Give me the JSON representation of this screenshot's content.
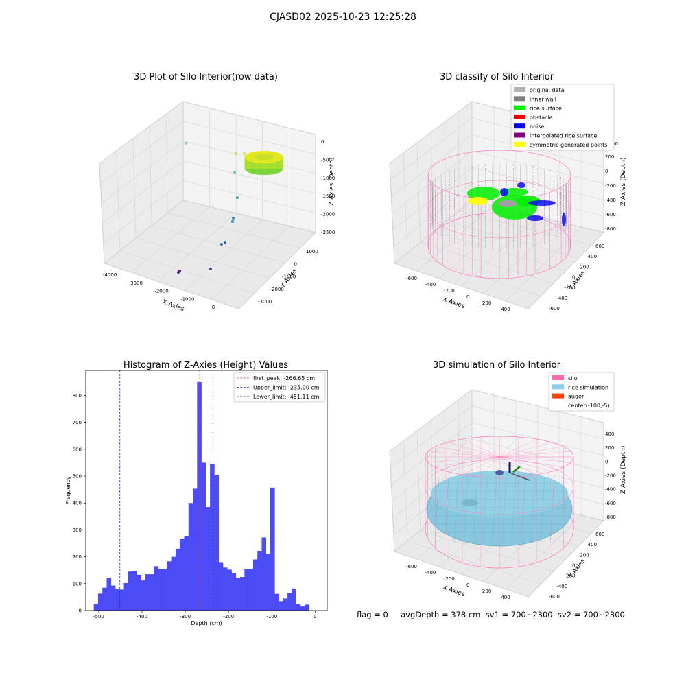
{
  "figure": {
    "title": "CJASD02 2025-10-23 12:25:28",
    "footer": "flag = 0     avgDepth = 378 cm  sv1 = 700~2300  sv2 = 700~2300"
  },
  "colors": {
    "hist_bar": "#4b4bf7",
    "first_peak": "#e8393a",
    "limit": "#2222cc",
    "silo_wire": "#ff77bb",
    "rice_sim": "#87c8de",
    "rice_surface": "#00ee00",
    "noise": "#0000ee",
    "inner_wall": "#808080",
    "symmetric": "#ffff00",
    "auger": "#ff4500"
  },
  "panel1": {
    "title": "3D Plot of Silo Interior(row data)",
    "xlabel": "X Axies",
    "ylabel": "Y Axies",
    "zlabel": "Z Axies (Depth)",
    "xticks": [
      "-4000",
      "-3000",
      "-2000",
      "-1000",
      "0"
    ],
    "yticks": [
      "1000",
      "0",
      "-1000",
      "-2000",
      "-3000"
    ],
    "zticks": [
      "0",
      "-500",
      "-1000",
      "-1500",
      "-2000",
      "-2500"
    ]
  },
  "panel2": {
    "title": "3D classify of Silo Interior",
    "xlabel": "X Axies",
    "ylabel": "Y Axies",
    "zlabel": "Z Axies (Depth)",
    "xticks": [
      "-600",
      "-400",
      "-200",
      "0",
      "200",
      "400"
    ],
    "yticks": [
      "600",
      "400",
      "200",
      "0",
      "-200",
      "-400",
      "-600"
    ],
    "zticks": [
      "200",
      "0",
      "-200",
      "-400",
      "-600",
      "-800"
    ],
    "ztick_partial": "00",
    "legend": [
      {
        "label": "original data",
        "color": "#b3b3b3"
      },
      {
        "label": "inner wall",
        "color": "#808080"
      },
      {
        "label": "rice surface",
        "color": "#00ee00"
      },
      {
        "label": "obstacle",
        "color": "#ee0000"
      },
      {
        "label": "noise",
        "color": "#0000ee"
      },
      {
        "label": "interpolated rice surface",
        "color": "#800080"
      },
      {
        "label": "symmetric generated points",
        "color": "#ffff00"
      }
    ]
  },
  "panel4": {
    "title": "3D simulation of Silo Interior",
    "xlabel": "X Axies",
    "ylabel": "Y Axies",
    "zlabel": "Z Axies (Depth)",
    "xticks": [
      "-600",
      "-400",
      "-200",
      "0",
      "200",
      "400"
    ],
    "yticks": [
      "600",
      "400",
      "200",
      "0",
      "-200",
      "-400",
      "-600"
    ],
    "zticks": [
      "400",
      "200",
      "0",
      "-200",
      "-400",
      "-600",
      "-800"
    ],
    "legend": [
      {
        "label": "silo",
        "color": "#ff69b4"
      },
      {
        "label": "rice simulation",
        "color": "#87ceeb"
      },
      {
        "label": "auger",
        "color": "#ff4500"
      },
      {
        "label": "center(-100,-5)",
        "color": ""
      }
    ]
  },
  "chart_data": {
    "type": "bar",
    "title": "Histogram of Z-Axies (Height) Values",
    "xlabel": "Depth (cm)",
    "ylabel": "Frequency",
    "xlim": [
      -530,
      28
    ],
    "ylim": [
      0,
      893
    ],
    "xticks": [
      -500,
      -400,
      -300,
      -200,
      -100,
      0
    ],
    "yticks": [
      0,
      100,
      200,
      300,
      400,
      500,
      600,
      700,
      800
    ],
    "bin_start": -511.5,
    "bin_width": 9.95,
    "values": [
      25,
      63,
      85,
      120,
      93,
      80,
      78,
      102,
      145,
      148,
      133,
      112,
      135,
      135,
      165,
      155,
      153,
      183,
      200,
      230,
      268,
      278,
      400,
      453,
      850,
      550,
      385,
      545,
      505,
      180,
      160,
      152,
      138,
      120,
      125,
      155,
      155,
      190,
      222,
      272,
      210,
      457,
      62,
      35,
      45,
      65,
      82,
      25,
      15,
      22
    ],
    "lines": [
      {
        "name": "first_peak: -266.65 cm",
        "x": -266.65,
        "color": "#e8393a"
      },
      {
        "name": "Upper_limit: -235.90 cm",
        "x": -235.9,
        "color": "#2222cc"
      },
      {
        "name": "Lower_limit: -451.11 cm",
        "x": -451.11,
        "color": "#2222cc"
      }
    ],
    "legend_position": "top-right",
    "grid": false
  }
}
